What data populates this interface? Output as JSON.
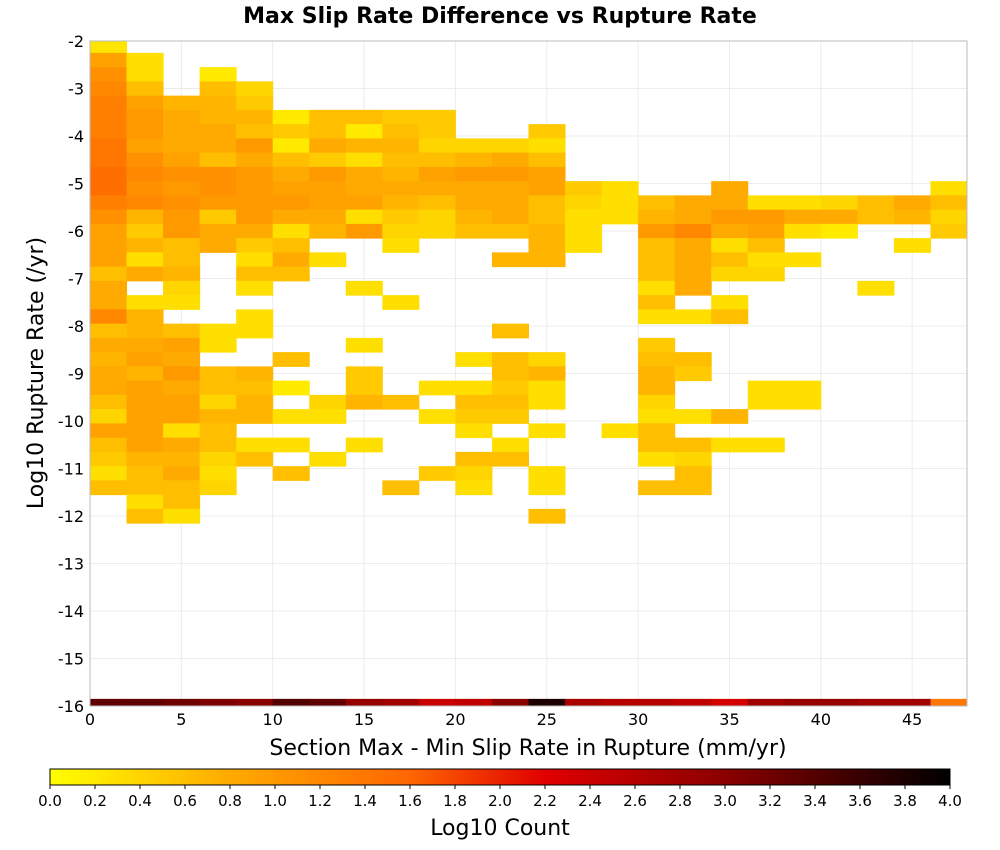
{
  "chart_data": {
    "type": "heatmap",
    "title": "Max Slip Rate Difference vs Rupture Rate",
    "xlabel": "Section Max - Min Slip Rate in Rupture (mm/yr)",
    "ylabel": "Log10 Rupture Rate (/yr)",
    "xlim": [
      0,
      48
    ],
    "ylim": [
      -16,
      -2
    ],
    "x_ticks": [
      "0",
      "5",
      "10",
      "15",
      "20",
      "25",
      "30",
      "35",
      "40",
      "45"
    ],
    "y_ticks": [
      "-2",
      "-3",
      "-4",
      "-5",
      "-6",
      "-7",
      "-8",
      "-9",
      "-10",
      "-11",
      "-12",
      "-13",
      "-14",
      "-15",
      "-16"
    ],
    "x_bin_width": 2,
    "x_bin_starts": [
      0,
      2,
      4,
      6,
      8,
      10,
      12,
      14,
      16,
      18,
      20,
      22,
      24,
      26,
      28,
      30,
      32,
      34,
      36,
      38,
      40,
      42,
      44,
      46
    ],
    "y_bin_height": 0.3,
    "colorbar": {
      "label": "Log10 Count",
      "min": 0.0,
      "max": 4.0,
      "ticks": [
        "0.0",
        "0.2",
        "0.4",
        "0.6",
        "0.8",
        "1.0",
        "1.2",
        "1.4",
        "1.6",
        "1.8",
        "2.0",
        "2.2",
        "2.4",
        "2.6",
        "2.8",
        "3.0",
        "3.2",
        "3.4",
        "3.6",
        "3.8",
        "4.0"
      ],
      "colors": [
        "#ffff00",
        "#ffaa00",
        "#ff6600",
        "#e00000",
        "#8b0000",
        "#000000"
      ]
    },
    "cells": [
      {
        "y": -2.1,
        "v": [
          0.25
        ]
      },
      {
        "y": -2.4,
        "v": [
          0.9,
          0.3
        ]
      },
      {
        "y": -2.7,
        "v": [
          1.1,
          0.3,
          null,
          0.2
        ]
      },
      {
        "y": -3.0,
        "v": [
          1.2,
          0.6,
          null,
          0.6,
          0.4
        ]
      },
      {
        "y": -3.3,
        "v": [
          1.3,
          0.9,
          0.7,
          0.7,
          0.5
        ]
      },
      {
        "y": -3.6,
        "v": [
          1.3,
          1.0,
          0.8,
          0.7,
          0.7,
          0.2,
          0.6,
          0.6,
          0.5,
          0.5
        ]
      },
      {
        "y": -3.9,
        "v": [
          1.3,
          1.0,
          0.8,
          0.8,
          0.6,
          0.5,
          0.6,
          0.2,
          0.6,
          0.5,
          null,
          null,
          0.5
        ]
      },
      {
        "y": -4.2,
        "v": [
          1.4,
          0.9,
          0.8,
          0.8,
          1.0,
          0.2,
          0.8,
          0.7,
          0.7,
          0.4,
          0.4,
          0.4,
          0.3
        ]
      },
      {
        "y": -4.5,
        "v": [
          1.4,
          1.1,
          0.9,
          0.6,
          0.8,
          0.6,
          0.5,
          0.3,
          0.6,
          0.6,
          0.7,
          0.8,
          0.6
        ]
      },
      {
        "y": -4.8,
        "v": [
          1.5,
          1.2,
          1.1,
          1.1,
          1.0,
          0.8,
          1.0,
          0.8,
          0.7,
          0.9,
          1.0,
          1.0,
          0.9
        ]
      },
      {
        "y": -5.1,
        "v": [
          1.5,
          1.1,
          1.0,
          1.1,
          1.0,
          0.9,
          0.9,
          0.8,
          0.8,
          0.8,
          0.8,
          0.8,
          0.9,
          0.5,
          0.3,
          null,
          null,
          0.8,
          null,
          null,
          null,
          null,
          null,
          0.3
        ]
      },
      {
        "y": -5.4,
        "v": [
          1.3,
          1.2,
          1.1,
          1.0,
          1.0,
          1.0,
          0.9,
          0.9,
          0.7,
          0.6,
          0.8,
          0.8,
          0.6,
          0.4,
          0.3,
          0.6,
          0.8,
          0.8,
          0.3,
          0.3,
          0.4,
          0.6,
          0.8,
          0.6
        ]
      },
      {
        "y": -5.7,
        "v": [
          1.1,
          0.7,
          1.0,
          0.5,
          1.0,
          0.8,
          0.8,
          0.3,
          0.5,
          0.4,
          0.7,
          0.8,
          0.6,
          0.3,
          0.3,
          0.7,
          0.8,
          1.0,
          1.0,
          0.8,
          0.8,
          0.6,
          0.7,
          0.4
        ]
      },
      {
        "y": -6.0,
        "v": [
          0.9,
          0.5,
          1.0,
          0.8,
          0.8,
          0.3,
          0.7,
          1.0,
          0.4,
          0.4,
          0.6,
          0.6,
          0.7,
          0.3,
          null,
          1.0,
          1.2,
          0.8,
          0.9,
          0.3,
          0.2,
          null,
          null,
          0.5
        ]
      },
      {
        "y": -6.3,
        "v": [
          0.9,
          0.7,
          0.6,
          0.8,
          0.5,
          0.6,
          null,
          null,
          0.3,
          null,
          null,
          null,
          0.7,
          0.3,
          null,
          0.6,
          0.8,
          0.3,
          0.6,
          null,
          null,
          null,
          0.3
        ]
      },
      {
        "y": -6.6,
        "v": [
          0.9,
          0.3,
          0.6,
          null,
          0.3,
          0.8,
          0.3,
          null,
          null,
          null,
          null,
          0.7,
          0.7,
          null,
          null,
          0.6,
          0.8,
          0.6,
          0.3,
          0.3
        ]
      },
      {
        "y": -6.9,
        "v": [
          0.6,
          0.8,
          0.7,
          null,
          0.6,
          0.6,
          null,
          null,
          null,
          null,
          null,
          null,
          null,
          null,
          null,
          0.6,
          0.8,
          0.4,
          0.4
        ]
      },
      {
        "y": -7.2,
        "v": [
          0.8,
          null,
          0.4,
          null,
          0.3,
          null,
          null,
          0.3,
          null,
          null,
          null,
          null,
          null,
          null,
          null,
          0.3,
          0.8,
          null,
          null,
          null,
          null,
          0.3
        ]
      },
      {
        "y": -7.5,
        "v": [
          0.8,
          0.3,
          0.3,
          null,
          null,
          null,
          null,
          null,
          0.3,
          null,
          null,
          null,
          null,
          null,
          null,
          0.6,
          null,
          0.3
        ]
      },
      {
        "y": -7.8,
        "v": [
          1.2,
          0.7,
          null,
          null,
          0.3,
          null,
          null,
          null,
          null,
          null,
          null,
          null,
          null,
          null,
          null,
          0.3,
          0.3,
          0.6
        ]
      },
      {
        "y": -8.1,
        "v": [
          0.6,
          0.7,
          0.6,
          0.3,
          0.3,
          null,
          null,
          null,
          null,
          null,
          null,
          0.6
        ]
      },
      {
        "y": -8.4,
        "v": [
          0.8,
          0.8,
          0.9,
          0.3,
          null,
          null,
          null,
          0.3,
          null,
          null,
          null,
          null,
          null,
          null,
          null,
          0.5
        ]
      },
      {
        "y": -8.7,
        "v": [
          0.7,
          0.9,
          0.8,
          null,
          null,
          0.6,
          null,
          null,
          null,
          null,
          0.3,
          0.6,
          0.4,
          null,
          null,
          0.6,
          0.6
        ]
      },
      {
        "y": -9.0,
        "v": [
          0.8,
          0.7,
          1.0,
          0.6,
          0.7,
          null,
          null,
          0.5,
          null,
          null,
          null,
          0.6,
          0.7,
          null,
          null,
          0.7,
          0.5
        ]
      },
      {
        "y": -9.3,
        "v": [
          0.8,
          0.9,
          0.8,
          0.6,
          0.6,
          0.2,
          null,
          0.5,
          null,
          0.3,
          0.3,
          0.5,
          0.3,
          null,
          null,
          0.7,
          null,
          null,
          0.3,
          0.3
        ]
      },
      {
        "y": -9.6,
        "v": [
          0.6,
          0.9,
          0.9,
          0.4,
          0.7,
          null,
          0.4,
          0.7,
          0.6,
          null,
          0.6,
          0.6,
          0.3,
          null,
          null,
          0.4,
          null,
          null,
          0.3,
          0.3
        ]
      },
      {
        "y": -9.9,
        "v": [
          0.4,
          0.9,
          0.9,
          0.7,
          0.7,
          0.3,
          0.3,
          null,
          null,
          0.3,
          0.5,
          0.5,
          null,
          null,
          null,
          0.3,
          0.3,
          0.7
        ]
      },
      {
        "y": -10.2,
        "v": [
          0.9,
          0.9,
          0.3,
          0.6,
          null,
          null,
          null,
          null,
          null,
          null,
          0.3,
          null,
          0.3,
          null,
          0.3,
          0.6
        ]
      },
      {
        "y": -10.5,
        "v": [
          0.6,
          0.9,
          0.8,
          0.6,
          0.3,
          0.3,
          null,
          0.3,
          null,
          null,
          null,
          0.3,
          null,
          null,
          null,
          0.6,
          0.6,
          0.3,
          0.3
        ]
      },
      {
        "y": -10.8,
        "v": [
          0.5,
          0.7,
          0.7,
          0.4,
          0.6,
          null,
          0.3,
          null,
          null,
          null,
          0.6,
          0.6,
          null,
          null,
          null,
          0.3,
          0.4
        ]
      },
      {
        "y": -11.1,
        "v": [
          0.3,
          0.6,
          0.8,
          0.3,
          null,
          0.6,
          null,
          null,
          null,
          0.5,
          0.4,
          null,
          0.3,
          null,
          null,
          null,
          0.6
        ]
      },
      {
        "y": -11.4,
        "v": [
          0.6,
          0.6,
          0.6,
          0.4,
          null,
          null,
          null,
          null,
          0.6,
          null,
          0.3,
          null,
          0.3,
          null,
          null,
          0.6,
          0.6
        ]
      },
      {
        "y": -11.7,
        "v": [
          null,
          0.3,
          0.6
        ]
      },
      {
        "y": -12.0,
        "v": [
          null,
          0.6,
          0.3,
          null,
          null,
          null,
          null,
          null,
          null,
          null,
          null,
          null,
          0.6
        ]
      },
      {
        "y": -16.0,
        "v": [
          3.3,
          3.3,
          3.2,
          3.1,
          3.0,
          3.4,
          3.3,
          2.9,
          2.8,
          2.4,
          2.5,
          3.0,
          3.8,
          2.7,
          2.6,
          2.6,
          2.5,
          2.3,
          2.8,
          2.9,
          2.9,
          2.8,
          2.8,
          1.4
        ]
      }
    ]
  }
}
